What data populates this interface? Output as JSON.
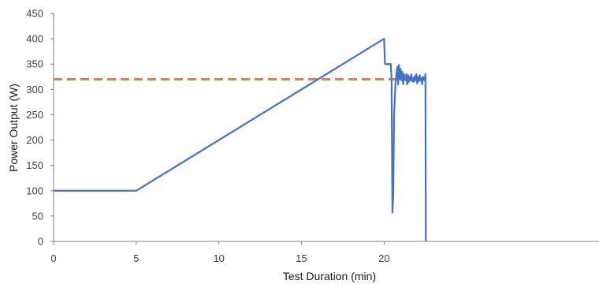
{
  "chart_data": {
    "type": "line",
    "title": "",
    "xlabel": "Test Duration (min)",
    "ylabel": "Power Output (W)",
    "xlim": [
      0,
      33
    ],
    "ylim": [
      0,
      450
    ],
    "x_ticks": [
      0,
      5,
      10,
      15,
      20
    ],
    "y_ticks": [
      0,
      50,
      100,
      150,
      200,
      250,
      300,
      350,
      400,
      450
    ],
    "grid": false,
    "legend": "none",
    "series": [
      {
        "color": "#4472C4",
        "style": "solid",
        "points": [
          [
            0,
            100
          ],
          [
            5,
            100
          ],
          [
            20,
            400
          ],
          [
            20.05,
            350
          ],
          [
            20.4,
            350
          ],
          [
            20.45,
            320
          ],
          [
            20.5,
            57
          ],
          [
            20.55,
            90
          ],
          [
            20.6,
            250
          ],
          [
            20.7,
            320
          ],
          [
            20.8,
            345
          ],
          [
            20.85,
            310
          ],
          [
            20.9,
            348
          ],
          [
            20.95,
            320
          ],
          [
            21.0,
            340
          ],
          [
            21.05,
            318
          ],
          [
            21.1,
            335
          ],
          [
            21.15,
            310
          ],
          [
            21.2,
            330
          ],
          [
            21.25,
            322
          ],
          [
            21.3,
            318
          ],
          [
            21.35,
            330
          ],
          [
            21.4,
            310
          ],
          [
            21.45,
            328
          ],
          [
            21.5,
            315
          ],
          [
            21.55,
            325
          ],
          [
            21.6,
            318
          ],
          [
            21.65,
            330
          ],
          [
            21.7,
            316
          ],
          [
            21.75,
            322
          ],
          [
            21.8,
            315
          ],
          [
            21.85,
            326
          ],
          [
            21.9,
            318
          ],
          [
            21.95,
            330
          ],
          [
            22.0,
            312
          ],
          [
            22.05,
            324
          ],
          [
            22.1,
            316
          ],
          [
            22.15,
            328
          ],
          [
            22.2,
            318
          ],
          [
            22.25,
            322
          ],
          [
            22.3,
            310
          ],
          [
            22.35,
            325
          ],
          [
            22.4,
            320
          ],
          [
            22.45,
            318
          ],
          [
            22.5,
            330
          ],
          [
            22.52,
            0
          ]
        ]
      },
      {
        "color": "#ED7D31",
        "style": "dashed",
        "points": [
          [
            0,
            320
          ],
          [
            22.5,
            320
          ]
        ]
      }
    ]
  }
}
